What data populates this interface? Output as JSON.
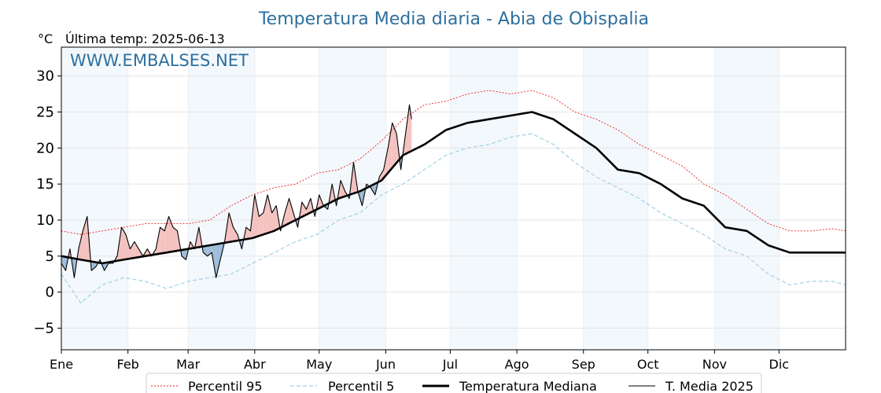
{
  "chart_data": {
    "type": "line",
    "title": "Temperatura Media diaria - Abia de Obispalia",
    "unit_label": "°C",
    "subtitle": "Última temp: 2025-06-13",
    "watermark": "WWW.EMBALSES.NET",
    "ylim": [
      -8,
      34
    ],
    "yticks": [
      -5,
      0,
      5,
      10,
      15,
      20,
      25,
      30
    ],
    "ytick_labels": [
      "−5",
      "0",
      "5",
      "10",
      "15",
      "20",
      "25",
      "30"
    ],
    "xlim": [
      1,
      366
    ],
    "month_ticks": [
      {
        "label": "Ene",
        "day": 1
      },
      {
        "label": "Feb",
        "day": 32
      },
      {
        "label": "Mar",
        "day": 60
      },
      {
        "label": "Abr",
        "day": 91
      },
      {
        "label": "May",
        "day": 121
      },
      {
        "label": "Jun",
        "day": 152
      },
      {
        "label": "Jul",
        "day": 182
      },
      {
        "label": "Ago",
        "day": 213
      },
      {
        "label": "Sep",
        "day": 244
      },
      {
        "label": "Oct",
        "day": 274
      },
      {
        "label": "Nov",
        "day": 305
      },
      {
        "label": "Dic",
        "day": 335
      }
    ],
    "shaded_months": [
      [
        1,
        32
      ],
      [
        60,
        91
      ],
      [
        121,
        152
      ],
      [
        182,
        213
      ],
      [
        244,
        274
      ],
      [
        305,
        335
      ]
    ],
    "grid": true,
    "legend_position": "bottom",
    "series": [
      {
        "name": "Percentil 95",
        "color": "#e8201a",
        "style": "dotted",
        "x": [
          1,
          10,
          20,
          30,
          40,
          50,
          60,
          70,
          80,
          90,
          100,
          110,
          120,
          130,
          140,
          150,
          160,
          170,
          180,
          190,
          200,
          210,
          220,
          230,
          240,
          250,
          260,
          270,
          280,
          290,
          300,
          310,
          320,
          330,
          340,
          350,
          360,
          366
        ],
        "y": [
          8.5,
          8,
          8.5,
          9,
          9.5,
          9.5,
          9.5,
          10,
          12,
          13.5,
          14.5,
          15,
          16.5,
          17,
          18.5,
          21,
          24,
          26,
          26.5,
          27.5,
          28,
          27.5,
          28,
          27,
          25,
          24,
          22.5,
          20.5,
          19,
          17.5,
          15,
          13.5,
          11.5,
          9.5,
          8.5,
          8.5,
          8.8,
          8.5
        ]
      },
      {
        "name": "Percentil 5",
        "color": "#9fd1e6",
        "style": "dashed",
        "x": [
          1,
          10,
          20,
          30,
          40,
          50,
          60,
          70,
          80,
          90,
          100,
          110,
          120,
          130,
          140,
          150,
          160,
          170,
          180,
          190,
          200,
          210,
          220,
          230,
          240,
          250,
          260,
          270,
          280,
          290,
          300,
          310,
          320,
          330,
          340,
          350,
          360,
          366
        ],
        "y": [
          2.5,
          -1.5,
          1,
          2,
          1.5,
          0.5,
          1.5,
          2,
          2.5,
          4,
          5.5,
          7,
          8,
          10,
          11,
          13.5,
          15,
          17,
          19,
          20,
          20.5,
          21.5,
          22,
          20.5,
          18,
          16,
          14.5,
          13,
          11,
          9.5,
          8,
          6,
          5,
          2.5,
          1,
          1.5,
          1.5,
          1
        ]
      },
      {
        "name": "Temperatura Mediana",
        "color": "#000000",
        "style": "thick",
        "x": [
          1,
          10,
          20,
          30,
          40,
          50,
          60,
          70,
          80,
          90,
          100,
          110,
          120,
          130,
          140,
          150,
          160,
          170,
          180,
          190,
          200,
          210,
          220,
          230,
          240,
          250,
          260,
          270,
          280,
          290,
          300,
          310,
          320,
          330,
          340,
          350,
          360,
          366
        ],
        "y": [
          5,
          4.5,
          4,
          4.5,
          5,
          5.5,
          6,
          6.5,
          7,
          7.5,
          8.5,
          10,
          11.5,
          13,
          14,
          15.5,
          19,
          20.5,
          22.5,
          23.5,
          24,
          24.5,
          25,
          24,
          22,
          20,
          17,
          16.5,
          15,
          13,
          12,
          9,
          8.5,
          6.5,
          5.5,
          5.5,
          5.5,
          5.5
        ]
      },
      {
        "name": "T. Media 2025",
        "color": "#000000",
        "style": "thin",
        "x": [
          1,
          3,
          5,
          7,
          9,
          11,
          13,
          15,
          17,
          19,
          21,
          23,
          25,
          27,
          29,
          31,
          33,
          35,
          37,
          39,
          41,
          43,
          45,
          47,
          49,
          51,
          53,
          55,
          57,
          59,
          61,
          63,
          65,
          67,
          69,
          71,
          73,
          75,
          77,
          79,
          81,
          83,
          85,
          87,
          89,
          91,
          93,
          95,
          97,
          99,
          101,
          103,
          105,
          107,
          109,
          111,
          113,
          115,
          117,
          119,
          121,
          123,
          125,
          127,
          129,
          131,
          133,
          135,
          137,
          139,
          141,
          143,
          145,
          147,
          149,
          151,
          153,
          155,
          157,
          159,
          161,
          163,
          164
        ],
        "y": [
          4,
          3,
          6,
          2,
          6,
          8.5,
          10.5,
          3,
          3.5,
          4.5,
          3,
          4,
          4,
          5,
          9,
          8,
          6,
          7,
          6,
          5,
          6,
          5,
          6,
          9,
          8.5,
          10.5,
          9,
          8.5,
          5,
          4.5,
          7,
          6,
          9,
          5.5,
          5,
          5.5,
          2,
          4.5,
          7,
          11,
          9,
          8,
          6,
          9,
          8.5,
          13.5,
          10.5,
          11,
          13.5,
          11,
          12,
          8.5,
          11,
          13,
          11,
          9,
          12.5,
          11.5,
          13,
          10.5,
          13.5,
          12,
          11.5,
          15,
          12,
          15.5,
          14,
          13,
          18,
          14,
          12,
          15,
          14.5,
          13.5,
          16,
          17,
          20,
          23.5,
          22,
          17,
          21.5,
          26,
          24
        ]
      }
    ]
  }
}
